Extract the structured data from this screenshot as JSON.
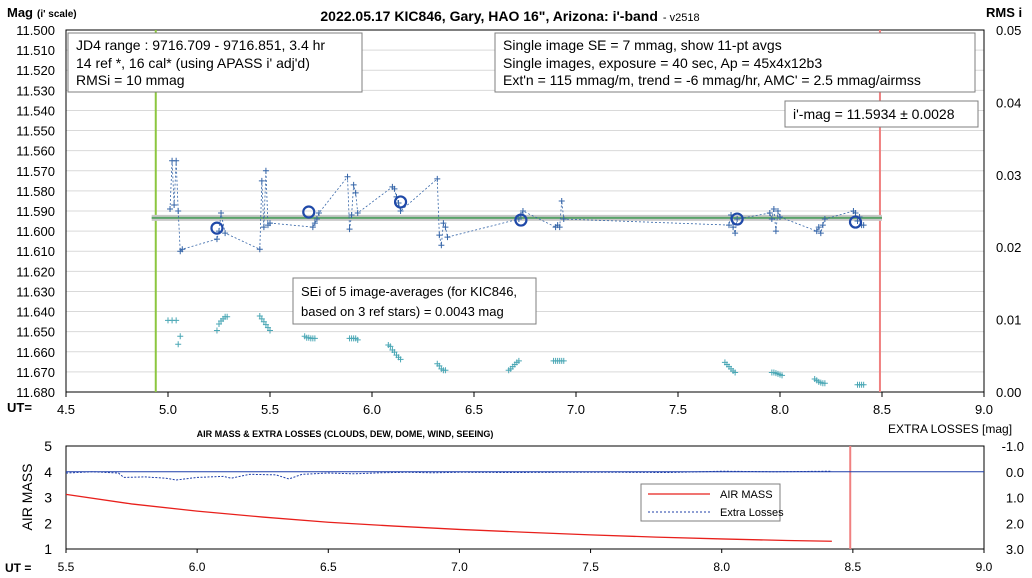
{
  "chart_data": [
    {
      "type": "scatter",
      "title": "2022.05.17 KIC846, Gary, HAO 16\", Arizona: i'-band",
      "subtitle": "- v2518",
      "ylabel": "Mag",
      "ylabel_sub": "(i' scale)",
      "y2label": "RMS i",
      "xlabel": "UT=",
      "xlim": [
        4.5,
        9.0
      ],
      "ylim": [
        11.68,
        11.5
      ],
      "y2lim": [
        0.0,
        0.05
      ],
      "x_ticks": [
        "4.5",
        "5.0",
        "5.5",
        "6.0",
        "6.5",
        "7.0",
        "7.5",
        "8.0",
        "8.5",
        "9.0"
      ],
      "y_ticks": [
        "11.500",
        "11.510",
        "11.520",
        "11.530",
        "11.540",
        "11.550",
        "11.560",
        "11.570",
        "11.580",
        "11.590",
        "11.600",
        "11.610",
        "11.620",
        "11.630",
        "11.640",
        "11.650",
        "11.660",
        "11.670",
        "11.680"
      ],
      "y2_ticks": [
        "0.05",
        "0.04",
        "0.03",
        "0.02",
        "0.01",
        "0.00"
      ],
      "grid": true,
      "annotations": {
        "box1": [
          "JD4 range : 9716.709 - 9716.851, 3.4  hr",
          "14 ref *, 16 cal* (using APASS i' adj'd)",
          "RMSi = 10 mmag"
        ],
        "box2": [
          "Single image SE = 7 mmag, show 11-pt avgs",
          "Single images, exposure = 40 sec, Ap = 45x4x12b3",
          "Ext'n = 115 mmag/m, trend = -6 mmag/hr, AMC' = 2.5 mmag/airmss"
        ],
        "box3": [
          "i'-mag = 11.5934 ± 0.0028"
        ],
        "box4": [
          "SEi of 5 image-averages (for KIC846,",
          "based on 3 ref stars) = 0.0043 mag"
        ]
      },
      "mean_mag": 11.5934,
      "start_line_x": 4.94,
      "end_line_x": 8.49,
      "series": [
        {
          "values_x": [
            5.01,
            5.02,
            5.03,
            5.04,
            5.05,
            5.06,
            5.07,
            5.24,
            5.25,
            5.26,
            5.28,
            5.45,
            5.46,
            5.47,
            5.48,
            5.49,
            5.5,
            5.71,
            5.72,
            5.73,
            5.74,
            5.88,
            5.89,
            5.9,
            5.91,
            5.92,
            5.93,
            6.1,
            6.11,
            6.12,
            6.13,
            6.14,
            6.32,
            6.33,
            6.34,
            6.35,
            6.36,
            6.37,
            6.72,
            6.73,
            6.74,
            6.9,
            6.91,
            6.92,
            6.93,
            6.94,
            7.75,
            7.76,
            7.77,
            7.78,
            7.79,
            7.95,
            7.96,
            7.97,
            7.98,
            7.99,
            8.0,
            8.18,
            8.19,
            8.2,
            8.21,
            8.22,
            8.36,
            8.37,
            8.38,
            8.39,
            8.4,
            8.41
          ],
          "values_y": [
            11.589,
            11.565,
            11.587,
            11.565,
            11.59,
            11.61,
            11.609,
            11.604,
            11.6,
            11.591,
            11.601,
            11.609,
            11.575,
            11.598,
            11.57,
            11.597,
            11.596,
            11.598,
            11.596,
            11.594,
            11.591,
            11.573,
            11.599,
            11.592,
            11.577,
            11.581,
            11.591,
            11.578,
            11.579,
            11.583,
            11.586,
            11.59,
            11.574,
            11.602,
            11.607,
            11.596,
            11.598,
            11.603,
            11.594,
            11.592,
            11.59,
            11.598,
            11.597,
            11.598,
            11.585,
            11.594,
            11.597,
            11.592,
            11.598,
            11.601,
            11.594,
            11.591,
            11.594,
            11.589,
            11.6,
            11.59,
            11.593,
            11.6,
            11.598,
            11.601,
            11.597,
            11.594,
            11.59,
            11.591,
            11.595,
            11.593,
            11.597,
            11.597
          ]
        },
        {
          "name": "averages",
          "values_x": [
            5.24,
            5.69,
            6.14,
            6.73,
            7.79,
            8.37
          ],
          "values_y": [
            11.5985,
            11.5905,
            11.5855,
            11.5945,
            11.594,
            11.5955
          ]
        },
        {
          "name": "SEi",
          "axis": "y2",
          "values_x": [
            5.0,
            5.02,
            5.04,
            5.05,
            5.06,
            5.24,
            5.25,
            5.26,
            5.27,
            5.28,
            5.29,
            5.45,
            5.46,
            5.47,
            5.48,
            5.49,
            5.5,
            5.67,
            5.68,
            5.69,
            5.7,
            5.71,
            5.72,
            5.89,
            5.9,
            5.91,
            5.92,
            5.93,
            6.08,
            6.09,
            6.1,
            6.11,
            6.12,
            6.13,
            6.14,
            6.32,
            6.33,
            6.34,
            6.35,
            6.36,
            6.67,
            6.68,
            6.69,
            6.7,
            6.71,
            6.72,
            6.89,
            6.9,
            6.91,
            6.92,
            6.93,
            6.94,
            7.73,
            7.74,
            7.75,
            7.76,
            7.77,
            7.78,
            7.96,
            7.97,
            7.98,
            7.99,
            8.0,
            8.01,
            8.17,
            8.18,
            8.19,
            8.2,
            8.21,
            8.22,
            8.38,
            8.39,
            8.4,
            8.41
          ],
          "values_y": [
            0.0099,
            0.0099,
            0.0099,
            0.0066,
            0.0077,
            0.0085,
            0.0094,
            0.0098,
            0.0101,
            0.0104,
            0.0104,
            0.0105,
            0.0101,
            0.0097,
            0.0093,
            0.0089,
            0.0085,
            0.0077,
            0.0075,
            0.0075,
            0.0074,
            0.0074,
            0.0074,
            0.0074,
            0.0074,
            0.0074,
            0.0074,
            0.0072,
            0.0065,
            0.0063,
            0.0058,
            0.0055,
            0.0051,
            0.0048,
            0.0045,
            0.0039,
            0.0036,
            0.0032,
            0.003,
            0.003,
            0.003,
            0.0032,
            0.0035,
            0.0038,
            0.0041,
            0.0043,
            0.0043,
            0.0043,
            0.0043,
            0.0043,
            0.0043,
            0.0043,
            0.0041,
            0.0038,
            0.0035,
            0.0032,
            0.0029,
            0.0027,
            0.0027,
            0.0027,
            0.0026,
            0.0025,
            0.0024,
            0.0023,
            0.0018,
            0.0016,
            0.0014,
            0.0013,
            0.0012,
            0.0012,
            0.001,
            0.001,
            0.001,
            0.001
          ]
        }
      ]
    },
    {
      "type": "line",
      "title": "AIR MASS & EXTRA LOSSES (CLOUDS, DEW, DOME, WIND, SEEING)",
      "ylabel": "AIR MASS",
      "y2label": "EXTRA LOSSES [mag]",
      "xlabel": "UT =",
      "xlim": [
        5.5,
        9.0
      ],
      "ylim": [
        1,
        5
      ],
      "y2lim": [
        3.0,
        -1.0
      ],
      "x_ticks": [
        "5.5",
        "6.0",
        "6.5",
        "7.0",
        "7.5",
        "8.0",
        "8.5",
        "9.0"
      ],
      "y_ticks": [
        "1",
        "2",
        "3",
        "4",
        "5"
      ],
      "y2_ticks": [
        "-1.0",
        "0.0",
        "1.0",
        "2.0",
        "3.0"
      ],
      "end_line_x": 8.49,
      "legend": "center-right",
      "series": [
        {
          "name": "AIR MASS",
          "color": "#e8201c",
          "x": [
            5.5,
            5.75,
            6.0,
            6.25,
            6.5,
            6.75,
            7.0,
            7.25,
            7.5,
            7.75,
            8.0,
            8.25,
            8.42
          ],
          "y": [
            3.12,
            2.75,
            2.47,
            2.24,
            2.04,
            1.89,
            1.76,
            1.65,
            1.55,
            1.46,
            1.39,
            1.33,
            1.3
          ]
        },
        {
          "name": "Extra Losses",
          "color": "#1f3faa",
          "x": [
            5.5,
            5.6,
            5.7,
            5.72,
            5.8,
            5.88,
            5.92,
            6.0,
            6.1,
            6.13,
            6.2,
            6.3,
            6.35,
            6.4,
            6.5,
            6.6,
            6.7,
            6.8,
            6.9,
            7.0,
            7.2,
            7.4,
            7.6,
            7.8,
            8.0,
            8.2,
            8.42
          ],
          "y": [
            0.05,
            0.0,
            0.05,
            0.22,
            0.2,
            0.25,
            0.32,
            0.22,
            0.18,
            0.25,
            0.1,
            0.12,
            0.28,
            0.1,
            0.05,
            0.08,
            0.04,
            0.02,
            0.04,
            0.02,
            0.03,
            0.02,
            0.02,
            0.03,
            -0.02,
            0.0,
            -0.02
          ]
        }
      ]
    }
  ]
}
